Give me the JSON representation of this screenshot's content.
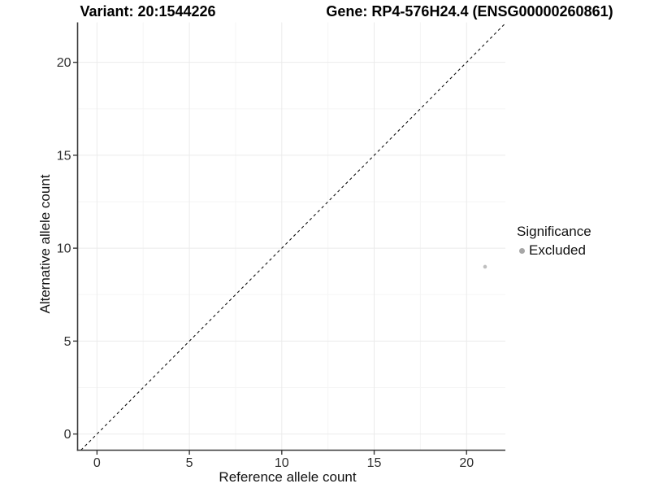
{
  "chart_data": {
    "type": "scatter",
    "titles": {
      "variant": "Variant: 20:1544226",
      "gene": "Gene: RP4-576H24.4 (ENSG00000260861)"
    },
    "xlabel": "Reference allele count",
    "ylabel": "Alternative allele count",
    "x_ticks": [
      0,
      5,
      10,
      15,
      20
    ],
    "y_ticks": [
      0,
      5,
      10,
      15,
      20
    ],
    "x_minor": [
      2.5,
      7.5,
      12.5,
      17.5
    ],
    "y_minor": [
      2.5,
      7.5,
      12.5,
      17.5
    ],
    "xlim": [
      -1.05,
      22.1
    ],
    "ylim": [
      -0.87,
      22.15
    ],
    "grid": {
      "major": "#ebebeb",
      "minor": "#f5f5f5",
      "background": "#ffffff"
    },
    "axis_color": "#383838",
    "identity_line": {
      "slope": 1,
      "intercept": 0,
      "style": "dashed",
      "color": "#111111"
    },
    "points": [
      {
        "x": 21,
        "y": 9,
        "significance": "Excluded",
        "color": "#bfbfbf",
        "radius": 2.3
      }
    ],
    "legend": {
      "title": "Significance",
      "position": "right",
      "items": [
        {
          "label": "Excluded",
          "color": "#a6a6a6"
        }
      ]
    }
  }
}
